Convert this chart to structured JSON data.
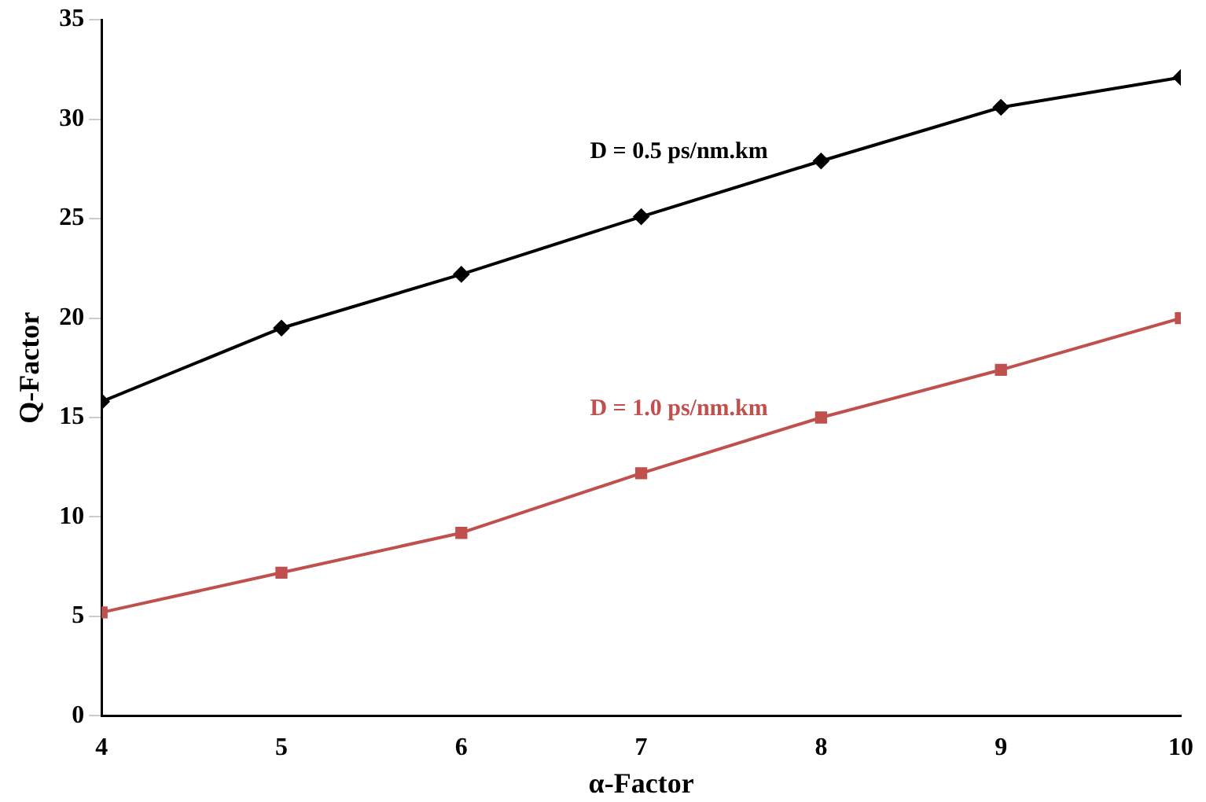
{
  "chart_data": {
    "type": "line",
    "xlabel": "α-Factor",
    "ylabel": "Q-Factor",
    "x": [
      4,
      5,
      6,
      7,
      8,
      9,
      10
    ],
    "series": [
      {
        "name": "D = 0.5 ps/nm.km",
        "color": "#000000",
        "marker": "diamond",
        "values": [
          15.8,
          19.5,
          22.2,
          25.1,
          27.9,
          30.6,
          32.1
        ]
      },
      {
        "name": "D = 1.0 ps/nm.km",
        "color": "#c0504d",
        "marker": "square",
        "values": [
          5.2,
          7.2,
          9.2,
          12.2,
          15.0,
          17.4,
          20.0
        ]
      }
    ],
    "xlim": [
      4,
      10
    ],
    "xticks": [
      4,
      5,
      6,
      7,
      8,
      9,
      10
    ],
    "ylim": [
      0,
      35
    ],
    "yticks": [
      0,
      5,
      10,
      15,
      20,
      25,
      30,
      35
    ],
    "grid": false,
    "legend": false
  }
}
